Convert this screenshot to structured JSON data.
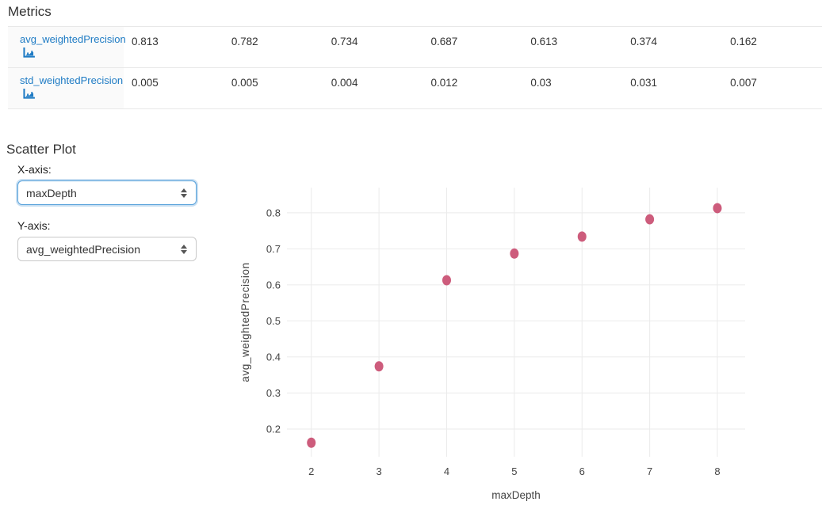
{
  "metrics": {
    "title": "Metrics",
    "rows": [
      {
        "name": "avg_weightedPrecision",
        "values": [
          "0.813",
          "0.782",
          "0.734",
          "0.687",
          "0.613",
          "0.374",
          "0.162"
        ]
      },
      {
        "name": "std_weightedPrecision",
        "values": [
          "0.005",
          "0.005",
          "0.004",
          "0.012",
          "0.03",
          "0.031",
          "0.007"
        ]
      }
    ]
  },
  "scatter_controls": {
    "title": "Scatter Plot",
    "x_label": "X-axis:",
    "y_label": "Y-axis:",
    "x_selected": "maxDepth",
    "y_selected": "avg_weightedPrecision"
  },
  "colors": {
    "link_blue": "#1e7bc4",
    "marker_pink": "#cd5c7c",
    "grid_gray": "#ebebeb",
    "focus_blue": "#55a0da",
    "row_header_bg": "#fafafa"
  },
  "chart_data": {
    "type": "scatter",
    "x": [
      2,
      3,
      4,
      5,
      6,
      7,
      8
    ],
    "y": [
      0.162,
      0.374,
      0.613,
      0.687,
      0.734,
      0.782,
      0.813
    ],
    "xlabel": "maxDepth",
    "ylabel": "avg_weightedPrecision",
    "x_ticks": [
      2,
      3,
      4,
      5,
      6,
      7,
      8
    ],
    "y_ticks": [
      0.2,
      0.3,
      0.4,
      0.5,
      0.6,
      0.7,
      0.8
    ],
    "xlim": [
      1.64,
      8.41
    ],
    "ylim": [
      0.123,
      0.87
    ],
    "grid": true,
    "legend": false,
    "marker_color": "#cd5c7c"
  }
}
